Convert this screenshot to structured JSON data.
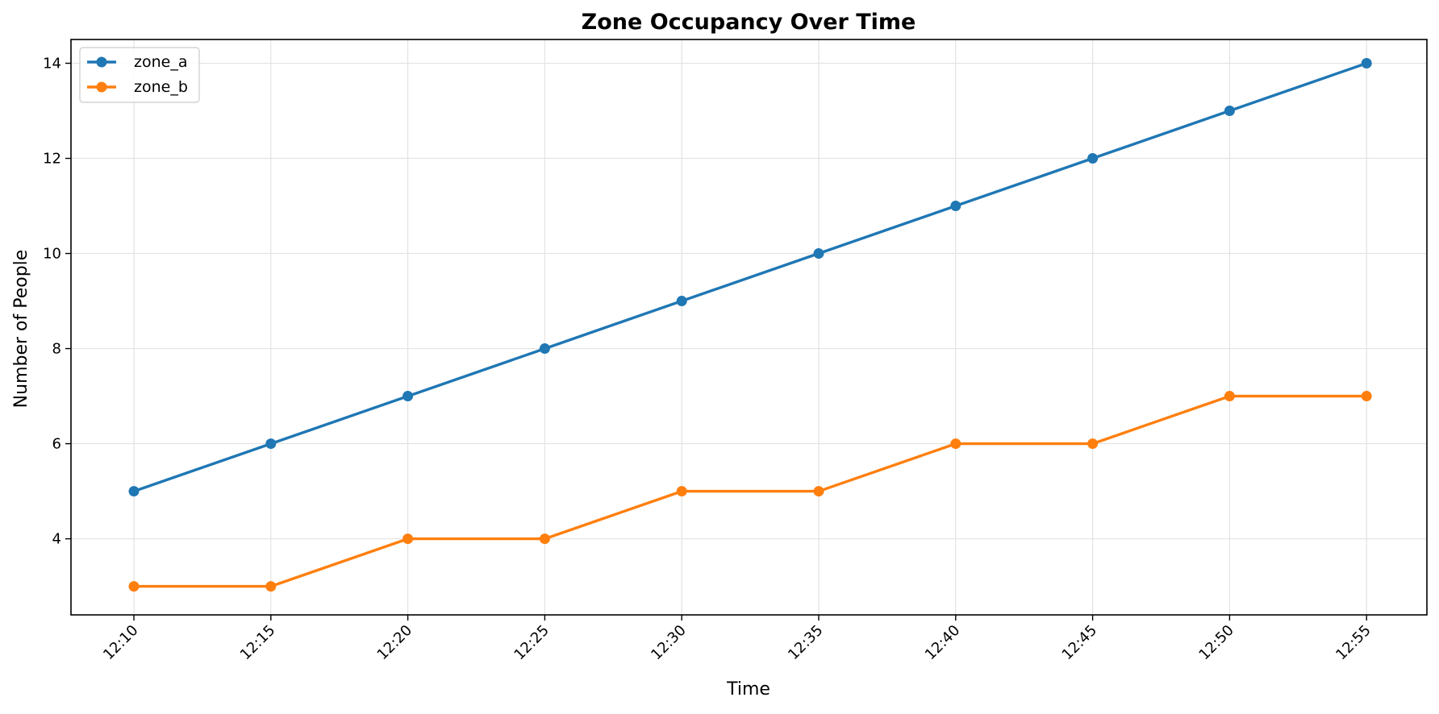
{
  "chart_data": {
    "type": "line",
    "title": "Zone Occupancy Over Time",
    "xlabel": "Time",
    "ylabel": "Number of People",
    "x": [
      "12:10",
      "12:15",
      "12:20",
      "12:25",
      "12:30",
      "12:35",
      "12:40",
      "12:45",
      "12:50",
      "12:55"
    ],
    "ylim": [
      2.4,
      14.5
    ],
    "yticks": [
      4,
      6,
      8,
      10,
      12,
      14
    ],
    "grid": true,
    "legend_position": "top-left",
    "series": [
      {
        "name": "zone_a",
        "color": "#1f77b4",
        "marker": "circle",
        "values": [
          5,
          6,
          7,
          8,
          9,
          10,
          11,
          12,
          13,
          14
        ]
      },
      {
        "name": "zone_b",
        "color": "#ff7f0e",
        "marker": "circle",
        "values": [
          3,
          3,
          4,
          4,
          5,
          5,
          6,
          6,
          7,
          7
        ]
      }
    ]
  }
}
